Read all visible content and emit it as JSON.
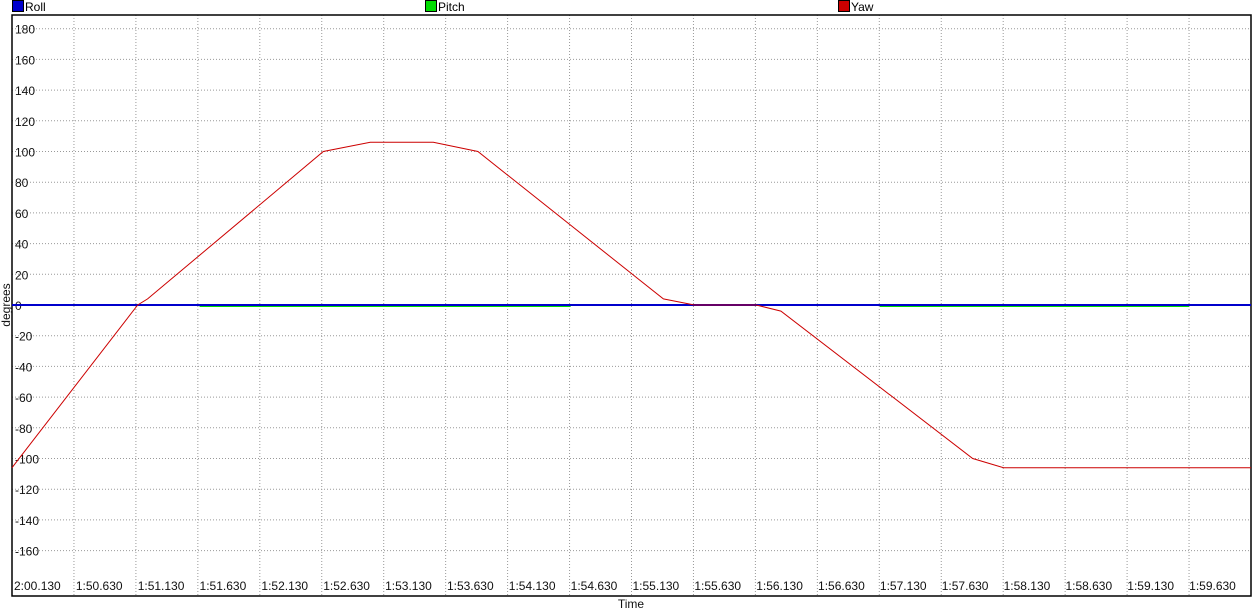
{
  "chart_data": {
    "type": "line",
    "title": "",
    "xlabel": "Time",
    "ylabel": "degrees",
    "ylim": [
      -180,
      180
    ],
    "yticks": [
      180,
      160,
      140,
      120,
      100,
      80,
      60,
      40,
      20,
      0,
      -20,
      -40,
      -60,
      -80,
      -100,
      -120,
      -140,
      -160
    ],
    "x_tick_labels": [
      "2:00.130",
      "1:50.630",
      "1:51.130",
      "1:51.630",
      "1:52.130",
      "1:52.630",
      "1:53.130",
      "1:53.630",
      "1:54.130",
      "1:54.630",
      "1:55.130",
      "1:55.630",
      "1:56.130",
      "1:56.630",
      "1:57.130",
      "1:57.630",
      "1:58.130",
      "1:58.630",
      "1:59.130",
      "1:59.630"
    ],
    "grid": true,
    "legend_position": "top",
    "series": [
      {
        "name": "Roll",
        "color": "#0000cc",
        "x": [
          "2:00.130",
          "1:59.630"
        ],
        "y": [
          0,
          0
        ]
      },
      {
        "name": "Pitch",
        "color": "#00dd00",
        "x": [
          "1:51.630",
          "1:54.630",
          "1:57.130",
          "1:59.630"
        ],
        "y": [
          -1,
          -1,
          -1,
          -1
        ]
      },
      {
        "name": "Yaw",
        "color": "#cc0000",
        "x": [
          "2:00.130",
          "1:51.130",
          "1:51.210",
          "1:52.630",
          "1:53.010",
          "1:53.520",
          "1:53.880",
          "1:55.380",
          "1:55.630",
          "1:56.130",
          "1:56.330",
          "1:57.880",
          "1:58.130",
          "1:59.630"
        ],
        "y": [
          -106,
          0,
          4,
          100,
          106,
          106,
          100,
          4,
          0,
          0,
          -4,
          -100,
          -106,
          -106
        ]
      }
    ]
  }
}
